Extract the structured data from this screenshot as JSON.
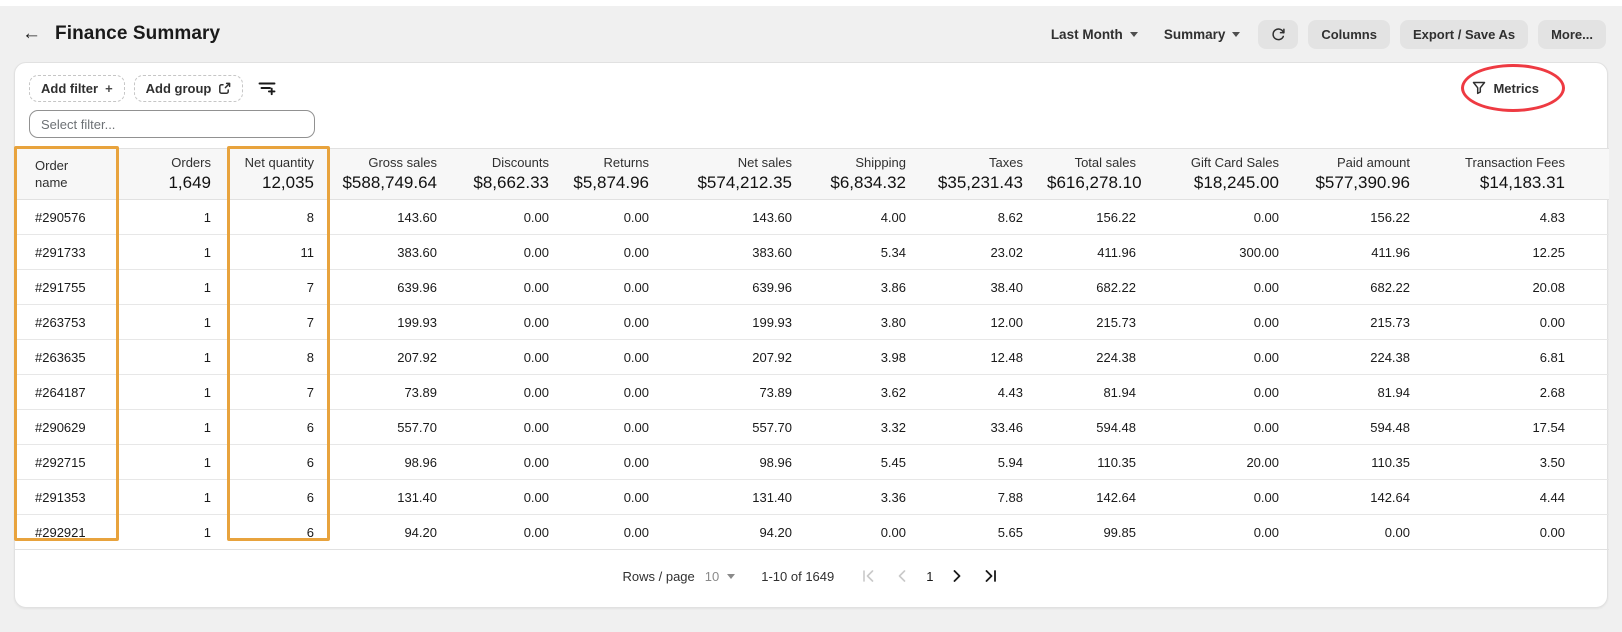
{
  "header": {
    "back_icon": "←",
    "title": "Finance Summary",
    "date_range_label": "Last Month",
    "view_label": "Summary",
    "columns_label": "Columns",
    "export_label": "Export / Save As",
    "more_label": "More..."
  },
  "toolbar": {
    "add_filter_label": "Add filter",
    "add_filter_glyph": "+",
    "add_group_label": "Add group",
    "metrics_label": "Metrics",
    "filter_placeholder": "Select filter..."
  },
  "table": {
    "columns": [
      {
        "label": "Order name",
        "total": "",
        "align": "left"
      },
      {
        "label": "Orders",
        "total": "1,649"
      },
      {
        "label": "Net quantity",
        "total": "12,035"
      },
      {
        "label": "Gross sales",
        "total": "$588,749.64"
      },
      {
        "label": "Discounts",
        "total": "$8,662.33"
      },
      {
        "label": "Returns",
        "total": "$5,874.96"
      },
      {
        "label": "Net sales",
        "total": "$574,212.35"
      },
      {
        "label": "Shipping",
        "total": "$6,834.32"
      },
      {
        "label": "Taxes",
        "total": "$35,231.43"
      },
      {
        "label": "Total sales",
        "total": "$616,278.10"
      },
      {
        "label": "Gift Card Sales",
        "total": "$18,245.00"
      },
      {
        "label": "Paid amount",
        "total": "$577,390.96"
      },
      {
        "label": "Transaction Fees",
        "total": "$14,183.31"
      }
    ],
    "rows": [
      [
        "#290576",
        "1",
        "8",
        "143.60",
        "0.00",
        "0.00",
        "143.60",
        "4.00",
        "8.62",
        "156.22",
        "0.00",
        "156.22",
        "4.83"
      ],
      [
        "#291733",
        "1",
        "11",
        "383.60",
        "0.00",
        "0.00",
        "383.60",
        "5.34",
        "23.02",
        "411.96",
        "300.00",
        "411.96",
        "12.25"
      ],
      [
        "#291755",
        "1",
        "7",
        "639.96",
        "0.00",
        "0.00",
        "639.96",
        "3.86",
        "38.40",
        "682.22",
        "0.00",
        "682.22",
        "20.08"
      ],
      [
        "#263753",
        "1",
        "7",
        "199.93",
        "0.00",
        "0.00",
        "199.93",
        "3.80",
        "12.00",
        "215.73",
        "0.00",
        "215.73",
        "0.00"
      ],
      [
        "#263635",
        "1",
        "8",
        "207.92",
        "0.00",
        "0.00",
        "207.92",
        "3.98",
        "12.48",
        "224.38",
        "0.00",
        "224.38",
        "6.81"
      ],
      [
        "#264187",
        "1",
        "7",
        "73.89",
        "0.00",
        "0.00",
        "73.89",
        "3.62",
        "4.43",
        "81.94",
        "0.00",
        "81.94",
        "2.68"
      ],
      [
        "#290629",
        "1",
        "6",
        "557.70",
        "0.00",
        "0.00",
        "557.70",
        "3.32",
        "33.46",
        "594.48",
        "0.00",
        "594.48",
        "17.54"
      ],
      [
        "#292715",
        "1",
        "6",
        "98.96",
        "0.00",
        "0.00",
        "98.96",
        "5.45",
        "5.94",
        "110.35",
        "20.00",
        "110.35",
        "3.50"
      ],
      [
        "#291353",
        "1",
        "6",
        "131.40",
        "0.00",
        "0.00",
        "131.40",
        "3.36",
        "7.88",
        "142.64",
        "0.00",
        "142.64",
        "4.44"
      ],
      [
        "#292921",
        "1",
        "6",
        "94.20",
        "0.00",
        "0.00",
        "94.20",
        "0.00",
        "5.65",
        "99.85",
        "0.00",
        "0.00",
        "0.00"
      ]
    ]
  },
  "pagination": {
    "rows_per_page_label": "Rows / page",
    "rows_per_page_value": "10",
    "range_label": "1-10 of 1649",
    "current_page": "1"
  },
  "annotations": {
    "highlight_color": "#e8a33d",
    "circle_color": "#ee3a42",
    "highlighted_columns": [
      "Order name",
      "Net quantity"
    ],
    "circled_control": "Metrics"
  }
}
